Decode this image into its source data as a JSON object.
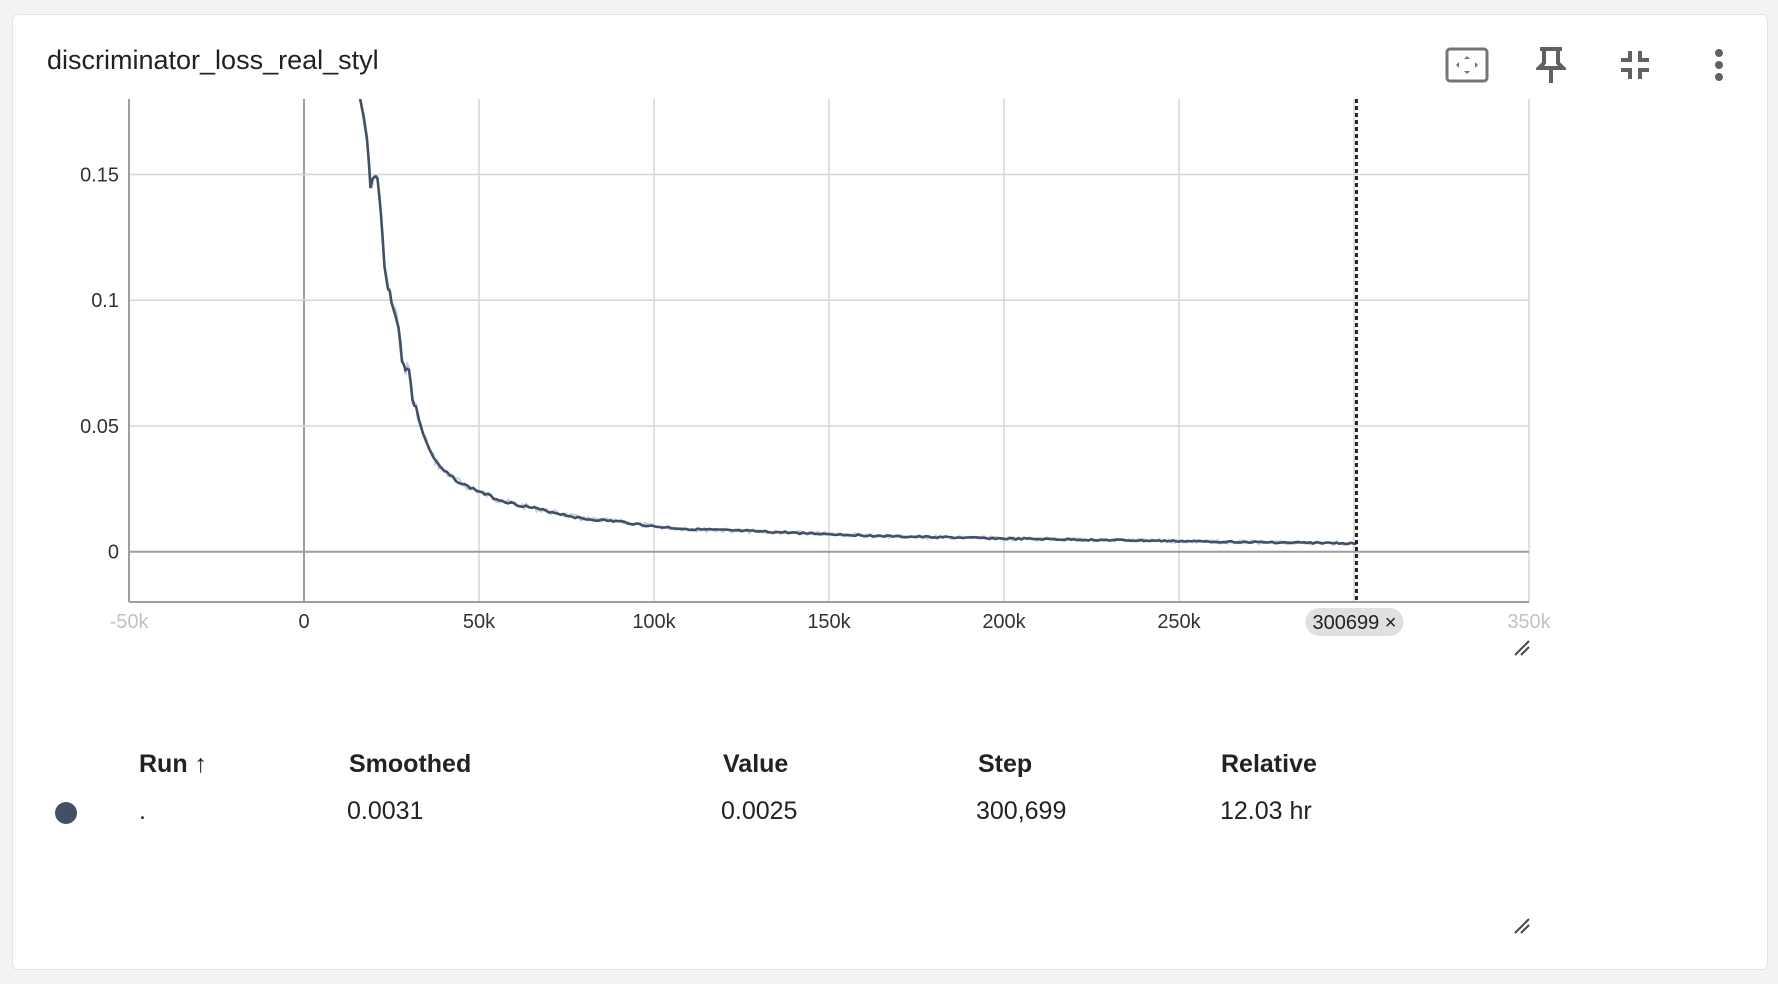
{
  "card": {
    "title": "discriminator_loss_real_styl",
    "toolbar": {
      "fit_icon": "fit-domain-icon",
      "pin_icon": "pin-icon",
      "collapse_icon": "collapse-icon",
      "menu_icon": "more-vert-icon"
    }
  },
  "chart_data": {
    "type": "line",
    "title": "discriminator_loss_real_styl",
    "x_ticks": [
      "-50k",
      "0",
      "50k",
      "100k",
      "150k",
      "200k",
      "250k",
      "300k",
      "350k"
    ],
    "x_tick_values": [
      -50000,
      0,
      50000,
      100000,
      150000,
      200000,
      250000,
      300000,
      350000
    ],
    "y_ticks": [
      "0",
      "0.05",
      "0.1",
      "0.15"
    ],
    "y_tick_values": [
      0,
      0.05,
      0.1,
      0.15
    ],
    "xlim": [
      -50000,
      350000
    ],
    "ylim": [
      -0.02,
      0.18
    ],
    "grid": true,
    "hover_step_label": "300699 ×",
    "hover_step": 300699,
    "series": [
      {
        "name": ".",
        "color": "#425066",
        "raw_color": "#c5cbe0",
        "x": [
          16000,
          18000,
          19000,
          20000,
          21000,
          22000,
          23000,
          24000,
          25000,
          27000,
          28000,
          29000,
          30000,
          31000,
          32000,
          34000,
          36000,
          38000,
          40000,
          45000,
          50000,
          55000,
          60000,
          70000,
          80000,
          90000,
          100000,
          110000,
          120000,
          130000,
          140000,
          150000,
          160000,
          170000,
          180000,
          190000,
          200000,
          210000,
          220000,
          230000,
          240000,
          250000,
          260000,
          270000,
          280000,
          290000,
          300000,
          300699
        ],
        "y": [
          0.18,
          0.165,
          0.145,
          0.15,
          0.148,
          0.135,
          0.113,
          0.105,
          0.1,
          0.09,
          0.075,
          0.073,
          0.073,
          0.06,
          0.057,
          0.047,
          0.04,
          0.035,
          0.032,
          0.027,
          0.024,
          0.021,
          0.019,
          0.016,
          0.013,
          0.012,
          0.01,
          0.009,
          0.0085,
          0.008,
          0.0075,
          0.007,
          0.0065,
          0.006,
          0.0058,
          0.0055,
          0.0052,
          0.005,
          0.0048,
          0.0046,
          0.0044,
          0.0042,
          0.004,
          0.0038,
          0.0036,
          0.0035,
          0.0033,
          0.0031
        ]
      }
    ]
  },
  "table": {
    "headers": {
      "run": "Run ↑",
      "smoothed": "Smoothed",
      "value": "Value",
      "step": "Step",
      "relative": "Relative"
    },
    "row": {
      "run": ".",
      "smoothed": "0.0031",
      "value": "0.0025",
      "step": "300,699",
      "relative": "12.03 hr",
      "color": "#425066"
    }
  }
}
